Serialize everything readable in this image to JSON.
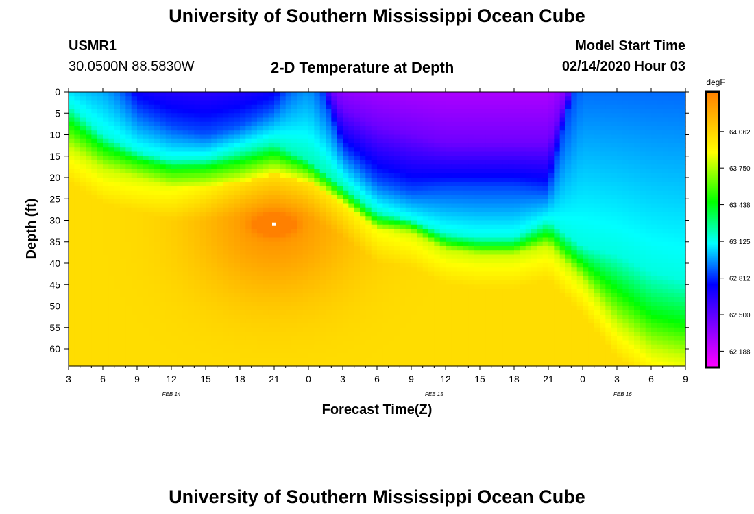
{
  "page": {
    "title_top": "University of Southern Mississippi Ocean Cube",
    "title_bottom": "University of Southern Mississippi Ocean Cube",
    "station_id": "USMR1",
    "coordinates": "30.0500N 88.5830W",
    "model_start_label": "Model Start Time",
    "model_start_value": "02/14/2020 Hour 03",
    "plot_title": "2-D Temperature at Depth"
  },
  "chart_data": {
    "type": "heatmap",
    "title": "2-D Temperature at Depth",
    "xlabel": "Forecast Time(Z)",
    "ylabel": "Depth (ft)",
    "x_ticks": [
      "3",
      "6",
      "9",
      "12",
      "15",
      "18",
      "21",
      "0",
      "3",
      "6",
      "9",
      "12",
      "15",
      "18",
      "21",
      "0",
      "3",
      "6",
      "9"
    ],
    "x_hours_from_start": [
      0,
      3,
      6,
      9,
      12,
      15,
      18,
      21,
      24,
      27,
      30,
      33,
      36,
      39,
      42,
      45,
      48,
      51,
      54
    ],
    "x_range_hours": [
      0,
      54
    ],
    "date_labels": [
      {
        "text": "FEB 14",
        "hour": 9
      },
      {
        "text": "FEB 15",
        "hour": 32
      },
      {
        "text": "FEB 16",
        "hour": 48.5
      }
    ],
    "y_ticks": [
      0,
      5,
      10,
      15,
      20,
      25,
      30,
      35,
      40,
      45,
      50,
      55,
      60
    ],
    "y_range_ft": [
      0,
      64
    ],
    "colorbar": {
      "unit": "degF",
      "ticks": [
        "64.062",
        "63.750",
        "63.438",
        "63.125",
        "62.812",
        "62.500",
        "62.188"
      ],
      "tick_values": [
        64.062,
        63.75,
        63.438,
        63.125,
        62.812,
        62.5,
        62.188
      ],
      "range": [
        62.05,
        64.4
      ],
      "stops": [
        "#ff00ff",
        "#8000ff",
        "#0000ff",
        "#00ffff",
        "#00ff00",
        "#ffff00",
        "#ff8000"
      ]
    },
    "isotherm_depths_ft": {
      "hours": [
        0,
        3,
        6,
        9,
        12,
        15,
        18,
        21,
        24,
        27,
        30,
        33,
        36,
        39,
        42,
        45,
        48,
        51,
        54
      ],
      "t_62_45": [
        -9,
        -9,
        -9,
        -9,
        -9,
        -9,
        -9,
        -9,
        4,
        8,
        10,
        12,
        12,
        12,
        12,
        -9,
        -9,
        -9,
        -9
      ],
      "t_62_85": [
        -9,
        -9,
        4,
        8,
        10,
        8,
        4,
        -9,
        14,
        21,
        23,
        22,
        22,
        22,
        23,
        -9,
        -9,
        -9,
        -9
      ],
      "t_63_15": [
        3,
        10,
        14,
        16,
        16,
        14,
        12,
        16,
        22,
        28,
        30,
        33,
        34,
        34,
        30,
        36,
        38,
        42,
        44
      ],
      "t_63_45": [
        7,
        13,
        16,
        18,
        18,
        17,
        15,
        18,
        24,
        30,
        31,
        35,
        36,
        36,
        33,
        40,
        46,
        52,
        54
      ],
      "t_63_80": [
        13,
        18,
        20,
        22,
        22,
        21,
        19,
        21,
        26,
        32,
        33,
        37,
        38,
        38,
        36,
        44,
        54,
        60,
        62
      ]
    },
    "warm_core": {
      "hour": 18,
      "depth_ft": 31,
      "peak_degF": 64.35
    }
  }
}
